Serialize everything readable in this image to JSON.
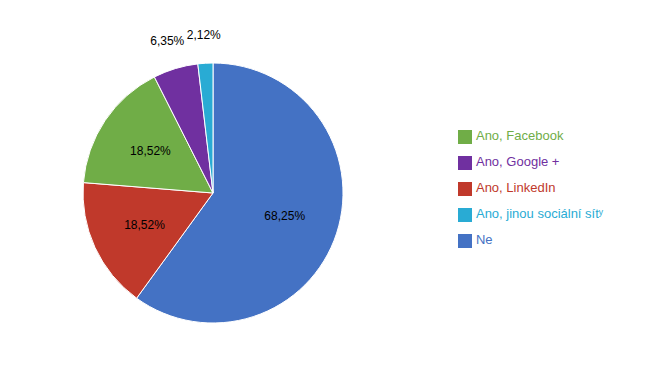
{
  "chart_data": {
    "type": "pie",
    "categories": [
      "Ne",
      "Ano, LinkedIn",
      "Ano, Facebook",
      "Ano, Google +",
      "Ano, jinou sociální sítʸ"
    ],
    "values": [
      68.25,
      18.52,
      18.52,
      6.35,
      2.12
    ],
    "value_labels": [
      "68,25%",
      "18,52%",
      "18,52%",
      "6,35%",
      "2,12%"
    ],
    "colors": [
      "#4472C4",
      "#C0392B",
      "#70AD47",
      "#7030A0",
      "#29ABD4"
    ],
    "data_labels": true,
    "legend": "right"
  }
}
